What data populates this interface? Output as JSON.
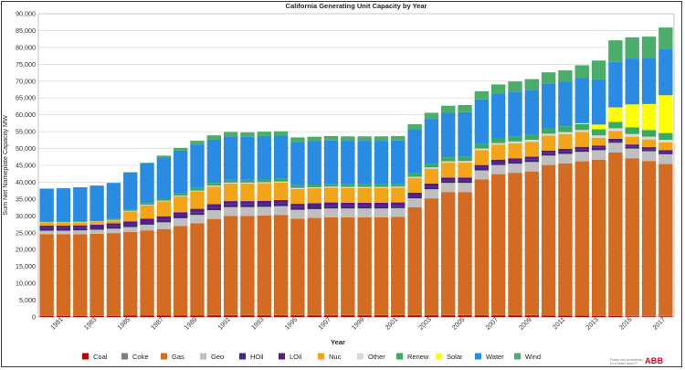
{
  "chart_data": {
    "type": "bar",
    "stacked": true,
    "title": "California Generating Unit Capacity by Year",
    "xlabel": "Year",
    "ylabel": "Sum Net Nameplate Capacity MW",
    "ylim": [
      0,
      90000
    ],
    "yticks": [
      "0",
      "5,000",
      "10,000",
      "15,000",
      "20,000",
      "25,000",
      "30,000",
      "35,000",
      "40,000",
      "45,000",
      "50,000",
      "55,000",
      "60,000",
      "65,000",
      "70,000",
      "75,000",
      "80,000",
      "85,000",
      "90,000"
    ],
    "grid": true,
    "legend_position": "bottom",
    "categories": [
      "1980",
      "1981",
      "1982",
      "1983",
      "1984",
      "1985",
      "1986",
      "1987",
      "1988",
      "1989",
      "1990",
      "1991",
      "1992",
      "1993",
      "1994",
      "1995",
      "1996",
      "1997",
      "1998",
      "1999",
      "2000",
      "2001",
      "2002",
      "2003",
      "2004",
      "2005",
      "2006",
      "2007",
      "2008",
      "2009",
      "2010",
      "2011",
      "2012",
      "2013",
      "2014",
      "2015",
      "2016",
      "2017"
    ],
    "tick_labels": [
      "1981",
      "1983",
      "1985",
      "1987",
      "1989",
      "1991",
      "1993",
      "1995",
      "1997",
      "1999",
      "2001",
      "2003",
      "2005",
      "2007",
      "2009",
      "2011",
      "2013",
      "2015",
      "2017"
    ],
    "series": [
      {
        "name": "Coal",
        "color": "#c00000",
        "values": [
          300,
          300,
          300,
          300,
          300,
          400,
          400,
          400,
          400,
          400,
          500,
          500,
          500,
          500,
          500,
          500,
          500,
          500,
          500,
          500,
          500,
          500,
          500,
          500,
          500,
          500,
          500,
          500,
          500,
          500,
          400,
          400,
          400,
          300,
          300,
          200,
          200,
          200
        ]
      },
      {
        "name": "Coke",
        "color": "#7f7f7f",
        "values": [
          0,
          0,
          0,
          0,
          0,
          0,
          0,
          0,
          0,
          0,
          100,
          100,
          100,
          100,
          100,
          100,
          100,
          100,
          100,
          100,
          100,
          100,
          100,
          100,
          100,
          100,
          100,
          100,
          100,
          100,
          100,
          100,
          100,
          100,
          100,
          100,
          100,
          100
        ]
      },
      {
        "name": "Gas",
        "color": "#d46b22",
        "values": [
          24300,
          24300,
          24300,
          24400,
          24600,
          24800,
          25300,
          25700,
          26600,
          27400,
          28500,
          29400,
          29400,
          29500,
          29700,
          28600,
          28800,
          29000,
          29000,
          29000,
          29000,
          29100,
          32000,
          34600,
          36500,
          36500,
          40200,
          41800,
          42200,
          42600,
          44600,
          45100,
          45700,
          46300,
          48400,
          46800,
          46000,
          45100
        ]
      },
      {
        "name": "Geo",
        "color": "#bfbfbf",
        "values": [
          1000,
          1000,
          1100,
          1200,
          1300,
          1500,
          1700,
          2000,
          2300,
          2500,
          2600,
          2600,
          2600,
          2600,
          2600,
          2600,
          2600,
          2600,
          2600,
          2600,
          2600,
          2600,
          2600,
          2700,
          2700,
          2700,
          2700,
          2700,
          2700,
          2800,
          2800,
          2800,
          2800,
          2800,
          2900,
          2900,
          2900,
          2900
        ]
      },
      {
        "name": "HOil",
        "color": "#3f2a7a",
        "values": [
          800,
          800,
          800,
          800,
          800,
          800,
          800,
          800,
          800,
          800,
          800,
          800,
          800,
          800,
          800,
          800,
          800,
          800,
          700,
          700,
          700,
          700,
          700,
          700,
          700,
          700,
          700,
          700,
          700,
          700,
          700,
          700,
          700,
          700,
          600,
          600,
          600,
          600
        ]
      },
      {
        "name": "LOil",
        "color": "#5a1a8a",
        "values": [
          700,
          700,
          700,
          700,
          800,
          900,
          1000,
          1000,
          1000,
          1000,
          1000,
          1000,
          1000,
          1000,
          1000,
          1000,
          1000,
          1000,
          1000,
          1000,
          1000,
          1000,
          1000,
          1000,
          900,
          900,
          900,
          900,
          900,
          900,
          800,
          800,
          800,
          700,
          600,
          600,
          600,
          600
        ]
      },
      {
        "name": "Nuc",
        "color": "#f4a418",
        "values": [
          900,
          900,
          900,
          900,
          900,
          2900,
          3900,
          4400,
          4700,
          5200,
          5200,
          5200,
          5200,
          5200,
          5200,
          4400,
          4400,
          4400,
          4400,
          4400,
          4400,
          4400,
          4400,
          4400,
          4400,
          4400,
          4400,
          4400,
          4400,
          4400,
          4400,
          4400,
          4400,
          2300,
          2300,
          2300,
          2300,
          2300
        ]
      },
      {
        "name": "Other",
        "color": "#d9d9d9",
        "values": [
          100,
          100,
          100,
          100,
          100,
          200,
          200,
          200,
          200,
          200,
          300,
          300,
          300,
          300,
          300,
          300,
          300,
          300,
          300,
          300,
          300,
          300,
          300,
          400,
          400,
          500,
          500,
          500,
          600,
          600,
          600,
          600,
          600,
          700,
          800,
          800,
          800,
          800
        ]
      },
      {
        "name": "Renew",
        "color": "#3aaa5c",
        "values": [
          200,
          200,
          200,
          200,
          300,
          400,
          500,
          600,
          700,
          800,
          800,
          800,
          800,
          800,
          800,
          800,
          800,
          800,
          800,
          800,
          800,
          800,
          1000,
          1100,
          1200,
          1200,
          1300,
          1400,
          1500,
          1500,
          1600,
          1700,
          1700,
          1800,
          1900,
          2000,
          2000,
          2000
        ]
      },
      {
        "name": "Solar",
        "color": "#ffff00",
        "values": [
          0,
          0,
          0,
          0,
          0,
          0,
          0,
          0,
          0,
          0,
          0,
          0,
          0,
          0,
          0,
          0,
          0,
          0,
          0,
          0,
          0,
          0,
          0,
          0,
          0,
          0,
          0,
          0,
          0,
          0,
          0,
          0,
          300,
          1400,
          4300,
          6800,
          7700,
          11200
        ]
      },
      {
        "name": "Water",
        "color": "#2a8be3",
        "values": [
          9800,
          9900,
          10100,
          10400,
          10700,
          11000,
          11800,
          12200,
          12700,
          12900,
          12800,
          12900,
          12800,
          12900,
          12800,
          12900,
          12900,
          12900,
          12900,
          12900,
          12900,
          12900,
          13100,
          13300,
          13300,
          13300,
          13300,
          13300,
          13300,
          13300,
          13300,
          13300,
          13400,
          13400,
          13500,
          13600,
          13700,
          13800
        ]
      },
      {
        "name": "Wind",
        "color": "#4aad6a",
        "values": [
          0,
          0,
          0,
          0,
          0,
          100,
          200,
          600,
          800,
          1100,
          1300,
          1300,
          1300,
          1300,
          1300,
          1300,
          1300,
          1300,
          1300,
          1300,
          1300,
          1300,
          1500,
          1800,
          2000,
          2100,
          2400,
          2700,
          3000,
          3200,
          3300,
          3300,
          3800,
          5600,
          6400,
          6300,
          6300,
          6300
        ]
      }
    ]
  },
  "footer": {
    "brand": "ABB",
    "tagline_1": "Power and productivity",
    "tagline_2": "for a better world™"
  }
}
